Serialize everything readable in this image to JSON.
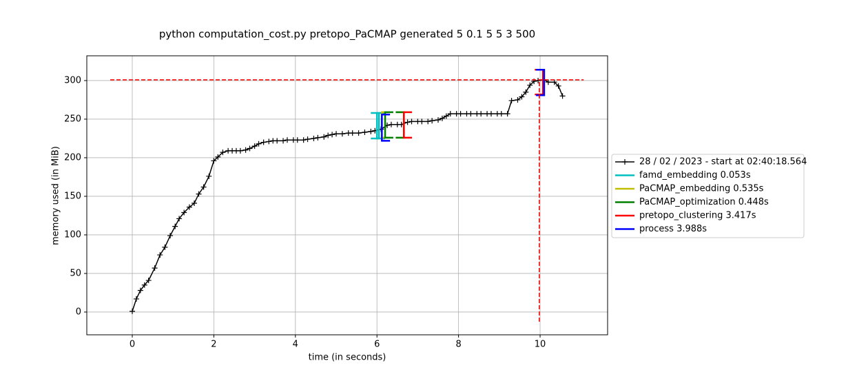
{
  "chart_data": {
    "type": "line",
    "title": "python computation_cost.py pretopo_PaCMAP generated 5 0.1 5 5 3 500",
    "xlabel": "time (in seconds)",
    "ylabel": "memory used (in MiB)",
    "xlim": [
      -1.115,
      11.655
    ],
    "ylim": [
      -29.5,
      332.1
    ],
    "xticks": [
      0,
      2,
      4,
      6,
      8,
      10
    ],
    "yticks": [
      0,
      50,
      100,
      150,
      200,
      250,
      300
    ],
    "grid": true,
    "legend": "outside right",
    "series": [
      {
        "name": "28 / 02 / 2023 - start at 02:40:18.564",
        "color": "#000000",
        "x": [
          0,
          0.1,
          0.2,
          0.3,
          0.4,
          0.55,
          0.68,
          0.8,
          0.93,
          1.05,
          1.15,
          1.27,
          1.4,
          1.52,
          1.63,
          1.75,
          1.88,
          2.0,
          2.1,
          2.22,
          2.35,
          2.45,
          2.55,
          2.65,
          2.78,
          2.88,
          3.0,
          3.1,
          3.22,
          3.35,
          3.45,
          3.55,
          3.7,
          3.8,
          3.95,
          4.05,
          4.2,
          4.3,
          4.45,
          4.55,
          4.7,
          4.8,
          4.9,
          5.0,
          5.15,
          5.3,
          5.4,
          5.55,
          5.7,
          5.85,
          5.95,
          6.1,
          6.25,
          6.35,
          6.5,
          6.6,
          6.75,
          6.85,
          7.0,
          7.1,
          7.25,
          7.35,
          7.5,
          7.6,
          7.7,
          7.8,
          7.95,
          8.05,
          8.2,
          8.3,
          8.45,
          8.55,
          8.7,
          8.8,
          8.95,
          9.05,
          9.2,
          9.3,
          9.45,
          9.55,
          9.65,
          9.75,
          9.85,
          9.95,
          10.1,
          10.2,
          10.35,
          10.45,
          10.55
        ],
        "values": [
          1,
          17,
          28,
          35,
          41,
          57,
          74,
          84,
          99,
          111,
          121,
          129,
          136,
          141,
          153,
          162,
          176,
          196,
          201,
          207,
          209,
          209,
          209,
          209,
          210,
          212,
          215,
          218,
          220,
          221,
          222,
          222,
          222,
          223,
          223,
          223,
          223,
          224,
          225,
          226,
          227,
          229,
          230,
          231,
          231,
          232,
          232,
          232,
          233,
          234,
          235,
          237,
          242,
          243,
          243,
          243,
          246,
          247,
          247,
          247,
          247,
          248,
          249,
          251,
          254,
          257,
          257,
          257,
          257,
          257,
          257,
          257,
          257,
          257,
          257,
          257,
          257,
          274,
          275,
          279,
          285,
          294,
          299,
          300,
          301,
          298,
          298,
          293,
          280
        ]
      }
    ],
    "functions": [
      {
        "name": "famd_embedding 0.053s",
        "color": "#00bfbf",
        "start": 6.0,
        "end": 6.05,
        "start_mem": [
          225,
          258
        ],
        "end_mem": [
          225,
          258
        ]
      },
      {
        "name": "PaCMAP_embedding 0.535s",
        "color": "#bfbf00",
        "start": 6.12,
        "end": 6.66,
        "start_mem": [
          226,
          259
        ],
        "end_mem": [
          226,
          259
        ]
      },
      {
        "name": "PaCMAP_optimization 0.448s",
        "color": "#008000",
        "start": 6.2,
        "end": 6.66,
        "start_mem": [
          226,
          259
        ],
        "end_mem": [
          226,
          259
        ]
      },
      {
        "name": "pretopo_clustering 3.417s",
        "color": "#ff0000",
        "start": 6.66,
        "end": 10.07,
        "start_mem": [
          226,
          259
        ],
        "end_mem": [
          282,
          314
        ]
      },
      {
        "name": "process 3.988s",
        "color": "#0000ff",
        "start": 6.12,
        "end": 10.1,
        "start_mem": [
          222,
          256
        ],
        "end_mem": [
          281,
          314
        ]
      }
    ],
    "max_marker": {
      "x": 9.98,
      "y": 301,
      "color": "#ff0000"
    }
  }
}
